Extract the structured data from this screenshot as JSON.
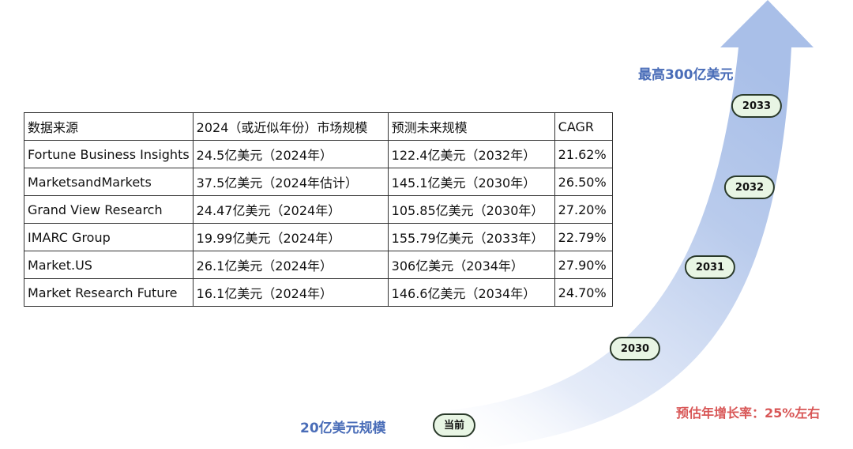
{
  "table": {
    "headers": [
      "数据来源",
      "2024（或近似年份）市场规模",
      "预测未来规模",
      "CAGR"
    ],
    "rows": [
      [
        "Fortune Business Insights",
        "24.5亿美元（2024年）",
        "122.4亿美元（2032年）",
        "21.62%"
      ],
      [
        "MarketsandMarkets",
        "37.5亿美元（2024年估计）",
        "145.1亿美元（2030年）",
        "26.50%"
      ],
      [
        "Grand View Research",
        "24.47亿美元（2024年）",
        "105.85亿美元（2030年）",
        "27.20%"
      ],
      [
        "IMARC Group",
        "19.99亿美元（2024年）",
        "155.79亿美元（2033年）",
        "22.79%"
      ],
      [
        "Market.US",
        "26.1亿美元（2024年）",
        "306亿美元（2034年）",
        "27.90%"
      ],
      [
        "Market Research Future",
        "16.1亿美元（2024年）",
        "146.6亿美元（2034年）",
        "24.70%"
      ]
    ]
  },
  "chart_data": {
    "type": "area",
    "milestones": [
      "当前",
      "2030",
      "2031",
      "2032",
      "2033"
    ],
    "start_label": "20亿美元规模",
    "end_label": "最高300亿美元",
    "growth_label": "预估年增长率：25%左右"
  },
  "colors": {
    "arrow": "#b3c5e8",
    "pill_fill": "#e8f5e4",
    "pill_border": "#2a3a2a",
    "label_blue": "#4a6db8",
    "label_red": "#d85656"
  }
}
